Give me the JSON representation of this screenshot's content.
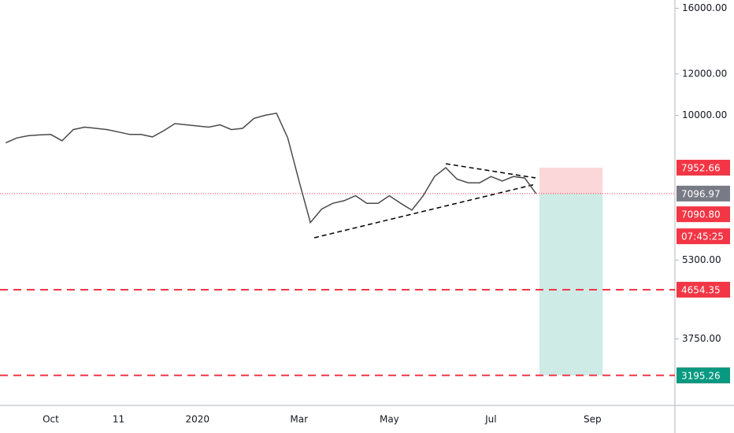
{
  "chart_data": {
    "type": "line",
    "log_scale": true,
    "categories": [
      null,
      null,
      null,
      null,
      "Oct",
      null,
      null,
      null,
      null,
      null,
      "11",
      null,
      null,
      null,
      null,
      null,
      null,
      "2020",
      null,
      null,
      null,
      null,
      null,
      null,
      null,
      null,
      "Mar",
      null,
      null,
      null,
      null,
      null,
      null,
      null,
      "May",
      null,
      null,
      null,
      null,
      null,
      null,
      null,
      null,
      "Jul",
      null,
      null,
      null,
      null,
      null,
      null,
      null,
      null,
      "Sep",
      null,
      null,
      null,
      null,
      null,
      null,
      null
    ],
    "series": [
      {
        "color": "#4a4a4a",
        "values": [
          8870,
          9060,
          9150,
          9180,
          9200,
          8950,
          9400,
          9500,
          9450,
          9400,
          9300,
          9200,
          9200,
          9100,
          9350,
          9650,
          9600,
          9550,
          9500,
          9600,
          9400,
          9450,
          9870,
          10010,
          10100,
          9060,
          7500,
          6250,
          6630,
          6800,
          6880,
          7030,
          6800,
          6800,
          7030,
          6800,
          6600,
          7030,
          7650,
          7950,
          7560,
          7440,
          7440,
          7650,
          7500,
          7650,
          7600,
          7097,
          null,
          null,
          null,
          null,
          null,
          null,
          null,
          null,
          null,
          null,
          null,
          null
        ]
      }
    ],
    "ylim": [
      2800,
      16600
    ],
    "yticks": [
      {
        "value": 16000,
        "label": "16000.00"
      },
      {
        "value": 12000,
        "label": "12000.00"
      },
      {
        "value": 10000,
        "label": "10000.00"
      },
      {
        "value": 5300,
        "label": "5300.00"
      },
      {
        "value": 3750,
        "label": "3750.00"
      }
    ],
    "hlines": [
      {
        "value": 4654.35,
        "color": "#f23645"
      },
      {
        "value": 3195.26,
        "color": "#f23645"
      }
    ],
    "current_price": {
      "value": 7096.97,
      "color": "#787b86"
    },
    "position": {
      "entry": {
        "value": 7090.8,
        "label": "7090.80"
      },
      "stop": 7952.66,
      "target": 3195.26,
      "countdown": "07:45:25",
      "stop_color": "#f23645",
      "target_color": "#089981"
    }
  }
}
